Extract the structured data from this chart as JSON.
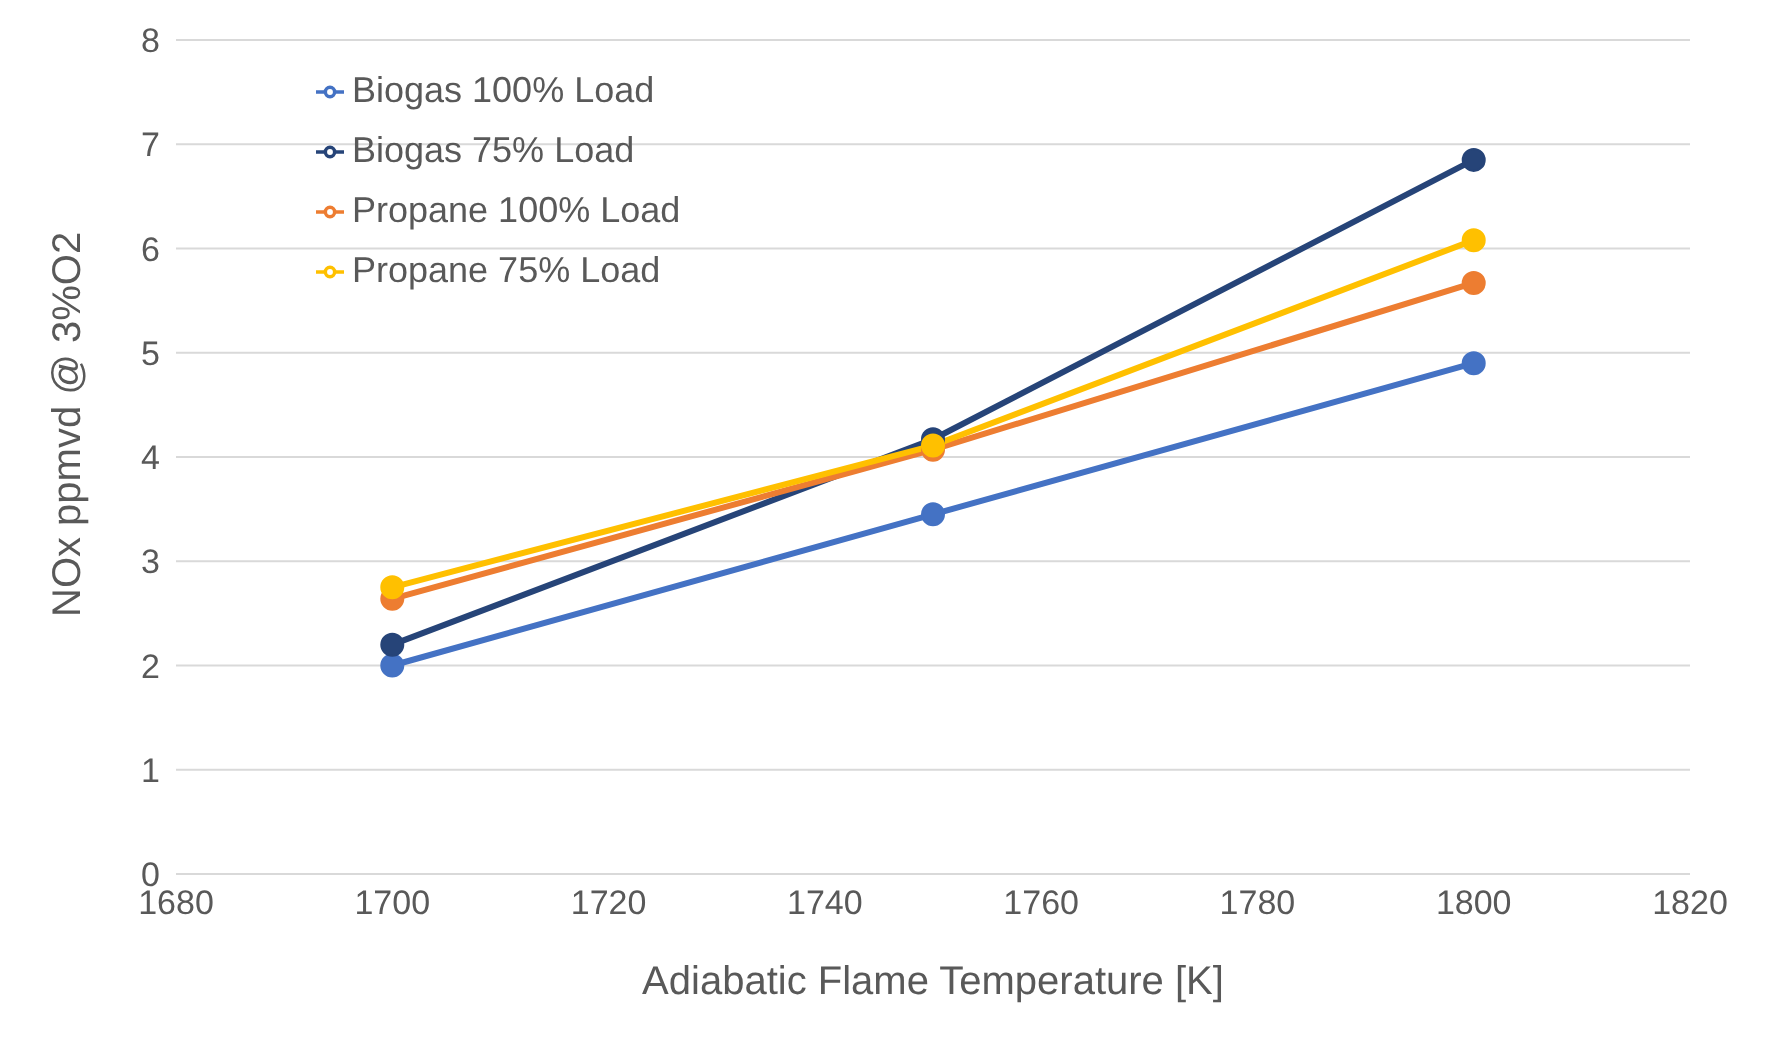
{
  "chart_data": {
    "type": "line",
    "xlabel": "Adiabatic Flame Temperature [K]",
    "ylabel": "NOx ppmvd @ 3%O2",
    "x": [
      1700,
      1750,
      1800
    ],
    "series": [
      {
        "name": "Biogas 100% Load",
        "color": "#4472c4",
        "values": [
          2.0,
          3.45,
          4.9
        ]
      },
      {
        "name": "Biogas 75% Load",
        "color": "#264478",
        "values": [
          2.2,
          4.17,
          6.85
        ]
      },
      {
        "name": "Propane 100% Load",
        "color": "#ed7d31",
        "values": [
          2.64,
          4.07,
          5.67
        ]
      },
      {
        "name": "Propane 75% Load",
        "color": "#ffc000",
        "values": [
          2.75,
          4.11,
          6.08
        ]
      }
    ],
    "xlim": [
      1680,
      1820
    ],
    "xticks": [
      1680,
      1700,
      1720,
      1740,
      1760,
      1780,
      1800,
      1820
    ],
    "ylim": [
      0,
      8
    ],
    "yticks": [
      0,
      1,
      2,
      3,
      4,
      5,
      6,
      7,
      8
    ],
    "grid": "y",
    "legend": "top left",
    "marker": "circle",
    "line_style": "solid"
  }
}
